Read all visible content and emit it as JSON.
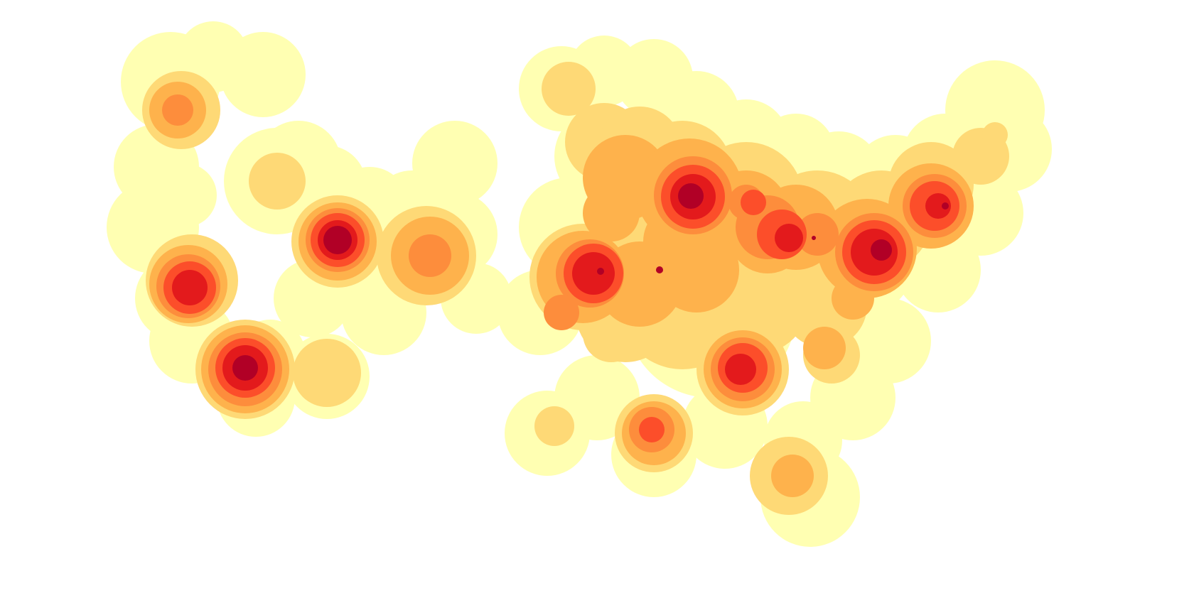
{
  "map": {
    "type": "density-heatmap",
    "palette": {
      "level_1": "#ffffb2",
      "level_2": "#fed976",
      "level_3": "#feb24c",
      "level_4": "#fd8d3c",
      "level_5": "#fc4e2a",
      "level_6": "#e31a1c",
      "level_7": "#b10026"
    },
    "hotspots": [
      {
        "id": "hotspot-nw-top",
        "peak_level": 4
      },
      {
        "id": "hotspot-nw-mid",
        "peak_level": 2
      },
      {
        "id": "hotspot-west-center",
        "peak_level": 7
      },
      {
        "id": "hotspot-west-center-east",
        "peak_level": 4
      },
      {
        "id": "hotspot-west-lower",
        "peak_level": 6
      },
      {
        "id": "hotspot-west-bottom",
        "peak_level": 7
      },
      {
        "id": "hotspot-west-bottom-east",
        "peak_level": 2
      },
      {
        "id": "hotspot-east-north",
        "peak_level": 7
      },
      {
        "id": "hotspot-east-west",
        "peak_level": 7
      },
      {
        "id": "hotspot-east-center",
        "peak_level": 6
      },
      {
        "id": "hotspot-east-east",
        "peak_level": 7
      },
      {
        "id": "hotspot-east-far-east",
        "peak_level": 6
      },
      {
        "id": "hotspot-east-south",
        "peak_level": 6
      },
      {
        "id": "hotspot-east-southwest",
        "peak_level": 5
      },
      {
        "id": "hotspot-east-far-south",
        "peak_level": 3
      }
    ]
  }
}
